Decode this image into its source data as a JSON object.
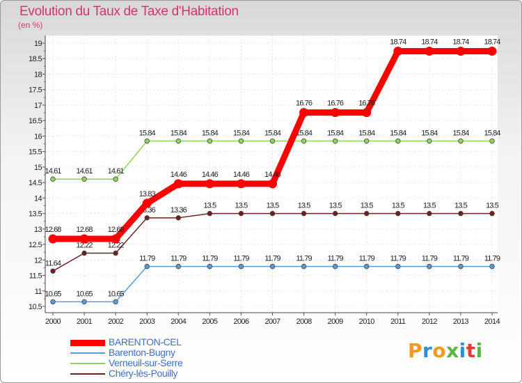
{
  "chart_data": {
    "type": "line",
    "title": "Evolution du Taux de Taxe d'Habitation",
    "ylabel": "(en %)",
    "xlabel": "",
    "ylim": [
      10.5,
      19
    ],
    "yticks": [
      "10.5",
      "11",
      "11.5",
      "12",
      "12.5",
      "13",
      "13.5",
      "14",
      "14.5",
      "15",
      "15.5",
      "16",
      "16.5",
      "17",
      "17.5",
      "18",
      "18.5",
      "19"
    ],
    "categories": [
      "2000",
      "2001",
      "2002",
      "2003",
      "2004",
      "2005",
      "2006",
      "2007",
      "2008",
      "2009",
      "2010",
      "2011",
      "2012",
      "2013",
      "2014"
    ],
    "series": [
      {
        "name": "BARENTON-CEL",
        "color": "#ff0000",
        "values": [
          12.68,
          12.68,
          12.68,
          13.83,
          14.46,
          14.46,
          14.46,
          14.46,
          16.76,
          16.76,
          16.76,
          18.74,
          18.74,
          18.74,
          18.74
        ]
      },
      {
        "name": "Barenton-Bugny",
        "color": "#5a9bd5",
        "values": [
          10.65,
          10.65,
          10.65,
          11.79,
          11.79,
          11.79,
          11.79,
          11.79,
          11.79,
          11.79,
          11.79,
          11.79,
          11.79,
          11.79,
          11.79
        ]
      },
      {
        "name": "Verneuil-sur-Serre",
        "color": "#8fd45a",
        "values": [
          14.61,
          14.61,
          14.61,
          15.84,
          15.84,
          15.84,
          15.84,
          15.84,
          15.84,
          15.84,
          15.84,
          15.84,
          15.84,
          15.84,
          15.84
        ]
      },
      {
        "name": "Chéry-lès-Pouilly",
        "color": "#6e1f1f",
        "values": [
          11.64,
          12.22,
          12.22,
          13.36,
          13.36,
          13.5,
          13.5,
          13.5,
          13.5,
          13.5,
          13.5,
          13.5,
          13.5,
          13.5,
          13.5
        ]
      }
    ],
    "legend_position": "bottom-left"
  },
  "brand": {
    "text": "Proxiti",
    "colors": [
      "#f39a1c",
      "#2f8fd8",
      "#f39a1c",
      "#5ab842",
      "#2f8fd8",
      "#e23a3a",
      "#5ab842"
    ]
  }
}
